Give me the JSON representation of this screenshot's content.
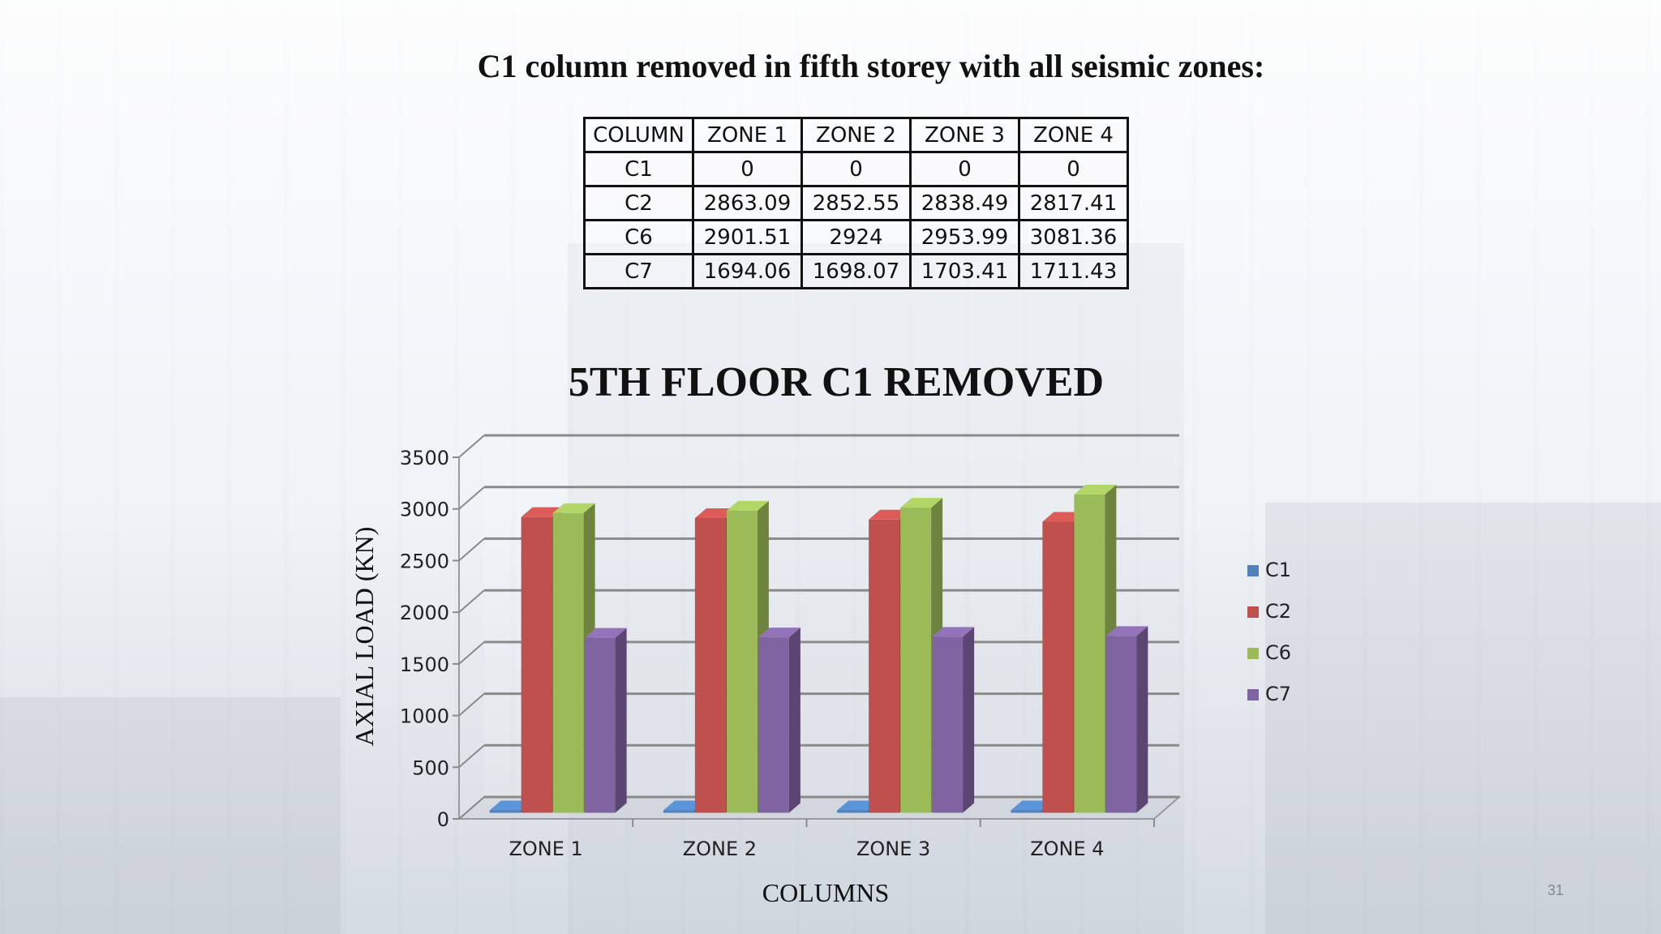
{
  "slide": {
    "heading": "C1 column removed  in fifth storey with all seismic zones:",
    "page_number": "31"
  },
  "table": {
    "headers": [
      "COLUMN",
      "ZONE 1",
      "ZONE 2",
      "ZONE 3",
      "ZONE 4"
    ],
    "rows": [
      [
        "C1",
        "0",
        "0",
        "0",
        "0"
      ],
      [
        "C2",
        "2863.09",
        "2852.55",
        "2838.49",
        "2817.41"
      ],
      [
        "C6",
        "2901.51",
        "2924",
        "2953.99",
        "3081.36"
      ],
      [
        "C7",
        "1694.06",
        "1698.07",
        "1703.41",
        "1711.43"
      ]
    ]
  },
  "chart_data": {
    "type": "bar",
    "title": "5TH FLOOR C1 REMOVED",
    "xlabel": "COLUMNS",
    "ylabel": "AXIAL LOAD (KN)",
    "categories": [
      "ZONE 1",
      "ZONE 2",
      "ZONE 3",
      "ZONE 4"
    ],
    "ylim": [
      0,
      3500
    ],
    "yticks": [
      0,
      500,
      1000,
      1500,
      2000,
      2500,
      3000,
      3500
    ],
    "grid": true,
    "legend_position": "right",
    "style": "3d-clustered-column",
    "series": [
      {
        "name": "C1",
        "values": [
          0,
          0,
          0,
          0
        ],
        "color": "#4f81bd"
      },
      {
        "name": "C2",
        "values": [
          2863.09,
          2852.55,
          2838.49,
          2817.41
        ],
        "color": "#c0504d"
      },
      {
        "name": "C6",
        "values": [
          2901.51,
          2924,
          2953.99,
          3081.36
        ],
        "color": "#9bbb59"
      },
      {
        "name": "C7",
        "values": [
          1694.06,
          1698.07,
          1703.41,
          1711.43
        ],
        "color": "#8064a2"
      }
    ]
  }
}
